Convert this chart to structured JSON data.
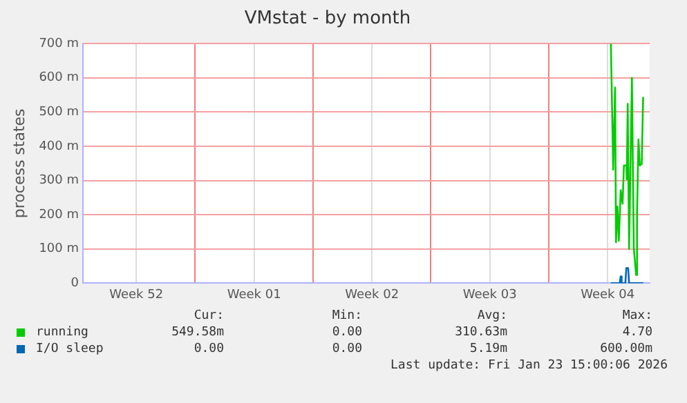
{
  "chart_data": {
    "type": "line",
    "title": "VMstat - by month",
    "ylabel": "process states",
    "xlim": [
      "2025-12-22T08:00",
      "2026-01-25T00:00"
    ],
    "xticks": [
      {
        "value": "2025-12-25T12:00",
        "label": "Week 52"
      },
      {
        "value": "2025-12-29",
        "label": null
      },
      {
        "value": "2026-01-01T12:00",
        "label": "Week 01"
      },
      {
        "value": "2026-01-05",
        "label": null
      },
      {
        "value": "2026-01-08T12:00",
        "label": "Week 02"
      },
      {
        "value": "2026-01-12",
        "label": null
      },
      {
        "value": "2026-01-15T12:00",
        "label": "Week 03"
      },
      {
        "value": "2026-01-19",
        "label": null
      },
      {
        "value": "2026-01-22T12:00",
        "label": "Week 04"
      }
    ],
    "ylim": [
      0,
      700
    ],
    "yticks": [
      0,
      {
        "value": 100,
        "label": "100 m"
      },
      {
        "value": 200,
        "label": "200 m"
      },
      {
        "value": 300,
        "label": "300 m"
      },
      {
        "value": 400,
        "label": "400 m"
      },
      {
        "value": 500,
        "label": "500 m"
      },
      {
        "value": 600,
        "label": "600 m"
      },
      {
        "value": 700,
        "label": "700 m"
      }
    ],
    "grid": true,
    "legend": "bottom",
    "marker": "none",
    "line_style": "solid",
    "series": [
      {
        "name": "running",
        "color": "#00cc00",
        "x": [
          "2026-01-22T16:40",
          "2026-01-22T20:00",
          "2026-01-22T22:40",
          "2026-01-23T00:00",
          "2026-01-23T02:00",
          "2026-01-23T04:00",
          "2026-01-23T06:40",
          "2026-01-23T09:20",
          "2026-01-23T11:20",
          "2026-01-23T14:40",
          "2026-01-23T15:20",
          "2026-01-23T16:40",
          "2026-01-23T18:40",
          "2026-01-23T22:40",
          "2026-01-24T01:20",
          "2026-01-24T04:40",
          "2026-01-24T06:00",
          "2026-01-24T08:00",
          "2026-01-24T10:00",
          "2026-01-24T12:40",
          "2026-01-24T14:40"
        ],
        "values": [
          700,
          332,
          572,
          120,
          224,
          124,
          272,
          232,
          344,
          344,
          304,
          524,
          100,
          600,
          104,
          24,
          200,
          420,
          344,
          348,
          544
        ]
      },
      {
        "name": "I/O sleep",
        "color": "#0066b3",
        "x": [
          "2026-01-22T16:40",
          "2026-01-23T01:20",
          "2026-01-23T05:20",
          "2026-01-23T06:40",
          "2026-01-23T08:00",
          "2026-01-23T13:20",
          "2026-01-23T14:40",
          "2026-01-23T17:20",
          "2026-01-23T18:40",
          "2026-01-24T14:40"
        ],
        "values": [
          0,
          0,
          0,
          20,
          0,
          0,
          44,
          44,
          0,
          0
        ]
      }
    ],
    "annotations": [
      "Cur:",
      "Min:",
      "Avg:",
      "Max:",
      "549.58m",
      "0.00",
      "310.63m",
      "4.70",
      "0.00",
      "0.00",
      "5.19m",
      "600.00m",
      "Last update: Fri Jan 23 15:00:06 2026"
    ]
  }
}
